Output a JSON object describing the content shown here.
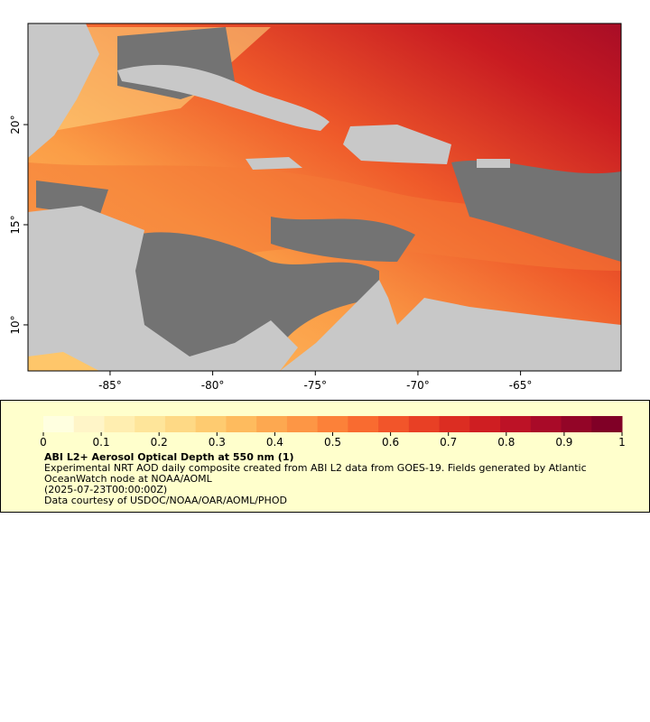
{
  "chart_data": {
    "type": "map",
    "xlim": [
      -89.0,
      -60.1
    ],
    "ylim": [
      7.7,
      25.05
    ],
    "xticks": [
      {
        "value": -85,
        "label": "-85°"
      },
      {
        "value": -80,
        "label": "-80°"
      },
      {
        "value": -75,
        "label": "-75°"
      },
      {
        "value": -70,
        "label": "-70°"
      },
      {
        "value": -65,
        "label": "-65°"
      }
    ],
    "yticks": [
      {
        "value": 10,
        "label": "10°"
      },
      {
        "value": 15,
        "label": "15°"
      },
      {
        "value": 20,
        "label": "20°"
      }
    ],
    "colorbar": {
      "lim": [
        0,
        1
      ],
      "ticks": [
        0,
        0.1,
        0.2,
        0.3,
        0.4,
        0.5,
        0.6,
        0.7,
        0.8,
        0.9,
        1
      ],
      "colors": [
        "#ffffe0",
        "#fff5c8",
        "#ffeeb0",
        "#fee59a",
        "#fed985",
        "#fecb70",
        "#febb5e",
        "#fda850",
        "#fd9645",
        "#fc8139",
        "#f96b30",
        "#f2552a",
        "#e84025",
        "#dc2d22",
        "#cf1e22",
        "#bd1226",
        "#a90a28",
        "#930527",
        "#800026"
      ]
    },
    "title": "ABI L2+ Aerosol Optical Depth at 550 nm (1)",
    "description": "Experimental NRT AOD daily composite created from ABI L2 data from GOES-19. Fields generated by Atlantic OceanWatch node at NOAA/AOML",
    "time": "(2025-07-23T00:00:00Z)",
    "credit": "Data courtesy of USDOC/NOAA/OAR/AOML/PHOD"
  }
}
